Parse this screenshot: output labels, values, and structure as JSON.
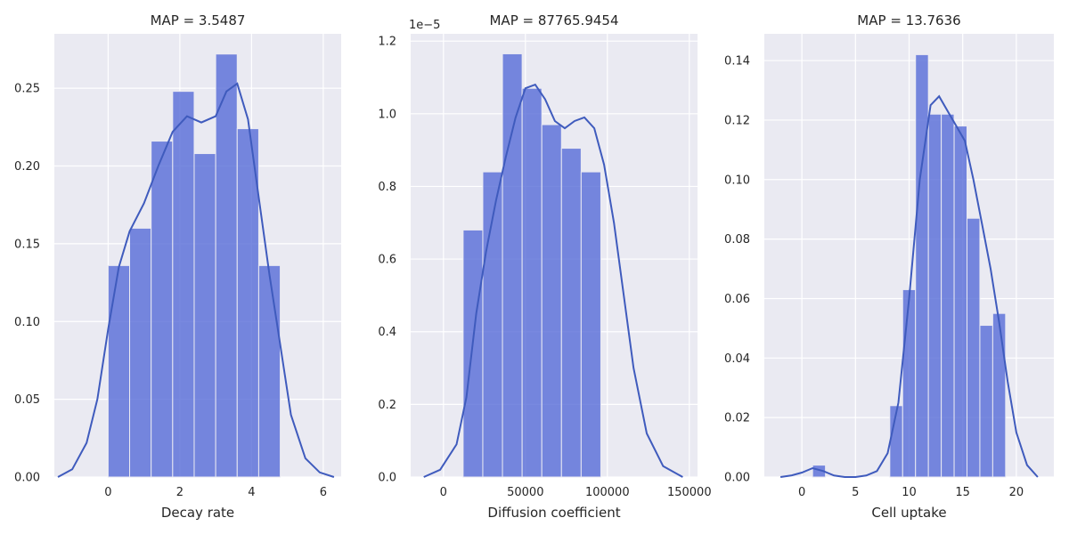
{
  "chart_data": [
    {
      "type": "histogram",
      "title": "MAP = 3.5487",
      "xlabel": "Decay rate",
      "ylabel": "",
      "xlim": [
        -1.5,
        6.5
      ],
      "ylim": [
        0,
        0.285
      ],
      "xticks": [
        0,
        2,
        4,
        6
      ],
      "xtick_labels": [
        "0",
        "2",
        "4",
        "6"
      ],
      "yticks": [
        0.0,
        0.05,
        0.1,
        0.15,
        0.2,
        0.25
      ],
      "ytick_labels": [
        "0.00",
        "0.05",
        "0.10",
        "0.15",
        "0.20",
        "0.25"
      ],
      "y_offset_label": "",
      "bins": [
        {
          "x0": 0.0,
          "x1": 0.6,
          "value": 0.136
        },
        {
          "x0": 0.6,
          "x1": 1.2,
          "value": 0.16
        },
        {
          "x0": 1.2,
          "x1": 1.8,
          "value": 0.216
        },
        {
          "x0": 1.8,
          "x1": 2.4,
          "value": 0.248
        },
        {
          "x0": 2.4,
          "x1": 3.0,
          "value": 0.208
        },
        {
          "x0": 3.0,
          "x1": 3.6,
          "value": 0.272
        },
        {
          "x0": 3.6,
          "x1": 4.2,
          "value": 0.224
        },
        {
          "x0": 4.2,
          "x1": 4.8,
          "value": 0.136
        }
      ],
      "kde": {
        "x": [
          -1.4,
          -1.0,
          -0.6,
          -0.3,
          0.0,
          0.3,
          0.6,
          1.0,
          1.4,
          1.8,
          2.2,
          2.6,
          3.0,
          3.3,
          3.6,
          3.9,
          4.2,
          4.5,
          4.8,
          5.1,
          5.5,
          5.9,
          6.3
        ],
        "y": [
          0.0,
          0.005,
          0.022,
          0.05,
          0.095,
          0.135,
          0.158,
          0.176,
          0.2,
          0.222,
          0.232,
          0.228,
          0.232,
          0.248,
          0.253,
          0.23,
          0.18,
          0.13,
          0.085,
          0.04,
          0.012,
          0.003,
          0.0
        ]
      }
    },
    {
      "type": "histogram",
      "title": "MAP = 87765.9454",
      "xlabel": "Diffusion coefficient",
      "ylabel": "",
      "xlim": [
        -20000,
        155000
      ],
      "ylim": [
        0,
        1.22
      ],
      "xticks": [
        0,
        50000,
        100000,
        150000
      ],
      "xtick_labels": [
        "0",
        "50000",
        "100000",
        "150000"
      ],
      "yticks": [
        0.0,
        0.2,
        0.4,
        0.6,
        0.8,
        1.0,
        1.2
      ],
      "ytick_labels": [
        "0.0",
        "0.2",
        "0.4",
        "0.6",
        "0.8",
        "1.0",
        "1.2"
      ],
      "y_offset_label": "1e−5",
      "bins": [
        {
          "x0": 12000,
          "x1": 24000,
          "value": 0.68
        },
        {
          "x0": 24000,
          "x1": 36000,
          "value": 0.84
        },
        {
          "x0": 36000,
          "x1": 48000,
          "value": 1.165
        },
        {
          "x0": 48000,
          "x1": 60000,
          "value": 1.07
        },
        {
          "x0": 60000,
          "x1": 72000,
          "value": 0.97
        },
        {
          "x0": 72000,
          "x1": 84000,
          "value": 0.905
        },
        {
          "x0": 84000,
          "x1": 96000,
          "value": 0.84
        }
      ],
      "kde": {
        "x": [
          -12000,
          -2000,
          8000,
          14000,
          20000,
          26000,
          32000,
          38000,
          44000,
          50000,
          56000,
          62000,
          68000,
          74000,
          80000,
          86000,
          92000,
          98000,
          104000,
          110000,
          116000,
          124000,
          134000,
          146000
        ],
        "y": [
          0.0,
          0.02,
          0.09,
          0.22,
          0.45,
          0.62,
          0.76,
          0.88,
          0.99,
          1.07,
          1.08,
          1.04,
          0.98,
          0.96,
          0.98,
          0.99,
          0.96,
          0.86,
          0.7,
          0.5,
          0.3,
          0.12,
          0.03,
          0.0
        ]
      }
    },
    {
      "type": "histogram",
      "title": "MAP = 13.7636",
      "xlabel": "Cell uptake",
      "ylabel": "",
      "xlim": [
        -3.5,
        23.5
      ],
      "ylim": [
        0,
        0.149
      ],
      "xticks": [
        0,
        5,
        10,
        15,
        20
      ],
      "xtick_labels": [
        "0",
        "5",
        "10",
        "15",
        "20"
      ],
      "yticks": [
        0.0,
        0.02,
        0.04,
        0.06,
        0.08,
        0.1,
        0.12,
        0.14
      ],
      "ytick_labels": [
        "0.00",
        "0.02",
        "0.04",
        "0.06",
        "0.08",
        "0.10",
        "0.12",
        "0.14"
      ],
      "y_offset_label": "",
      "bins": [
        {
          "x0": 1.0,
          "x1": 2.2,
          "value": 0.004
        },
        {
          "x0": 8.2,
          "x1": 9.4,
          "value": 0.024
        },
        {
          "x0": 9.4,
          "x1": 10.6,
          "value": 0.063
        },
        {
          "x0": 10.6,
          "x1": 11.8,
          "value": 0.142
        },
        {
          "x0": 11.8,
          "x1": 13.0,
          "value": 0.122
        },
        {
          "x0": 13.0,
          "x1": 14.2,
          "value": 0.122
        },
        {
          "x0": 14.2,
          "x1": 15.4,
          "value": 0.118
        },
        {
          "x0": 15.4,
          "x1": 16.6,
          "value": 0.087
        },
        {
          "x0": 16.6,
          "x1": 17.8,
          "value": 0.051
        },
        {
          "x0": 17.8,
          "x1": 19.0,
          "value": 0.055
        }
      ],
      "kde": {
        "x": [
          -2.0,
          -1.0,
          0.0,
          1.0,
          2.0,
          3.0,
          4.0,
          5.0,
          6.0,
          7.0,
          8.0,
          9.0,
          10.0,
          11.0,
          12.0,
          12.8,
          13.6,
          14.4,
          15.2,
          16.0,
          16.8,
          17.6,
          18.4,
          19.2,
          20.0,
          21.0,
          22.0
        ],
        "y": [
          0.0,
          0.0005,
          0.0015,
          0.003,
          0.002,
          0.0005,
          0.0,
          0.0,
          0.0005,
          0.002,
          0.008,
          0.025,
          0.06,
          0.1,
          0.125,
          0.128,
          0.123,
          0.118,
          0.113,
          0.1,
          0.085,
          0.07,
          0.052,
          0.032,
          0.015,
          0.004,
          0.0
        ]
      }
    }
  ]
}
